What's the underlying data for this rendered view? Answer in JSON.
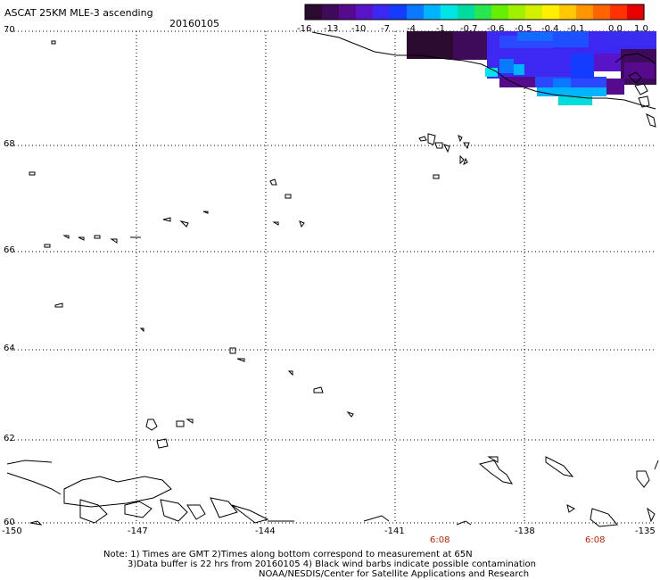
{
  "header": {
    "title": "ASCAT 25KM MLE-3 ascending",
    "date": "20160105"
  },
  "colorbar": {
    "labels": [
      "-16",
      "-13",
      "-10",
      "-7",
      "-4",
      "-1",
      "-0.7",
      "-0.6",
      "-0.5",
      "-0.4",
      "-0.1",
      "0.0",
      "1.0"
    ],
    "colors": [
      "#2a0a2e",
      "#3e0a5a",
      "#560a8c",
      "#5a14c8",
      "#3c28f0",
      "#143cff",
      "#0a78ff",
      "#00b4ff",
      "#00e6e6",
      "#00dca0",
      "#28e650",
      "#64f000",
      "#a0f000",
      "#d2f000",
      "#fff000",
      "#ffc800",
      "#ff9600",
      "#ff6400",
      "#ff3200",
      "#e60000"
    ]
  },
  "map": {
    "lat_labels": [
      "70",
      "68",
      "66",
      "64",
      "62",
      "60"
    ],
    "lon_labels": [
      "-150",
      "-147",
      "-144",
      "-141",
      "-138",
      "-135"
    ],
    "time_labels": [
      "6:08",
      "6:08"
    ]
  },
  "notes": [
    "Note: 1) Times are GMT 2)Times along bottom correspond to measurement at 65N",
    "3)Data buffer is 22 hrs from 20160105 4) Black wind barbs indicate possible contamination",
    "NOAA/NESDIS/Center for Satellite Applications and Research"
  ]
}
